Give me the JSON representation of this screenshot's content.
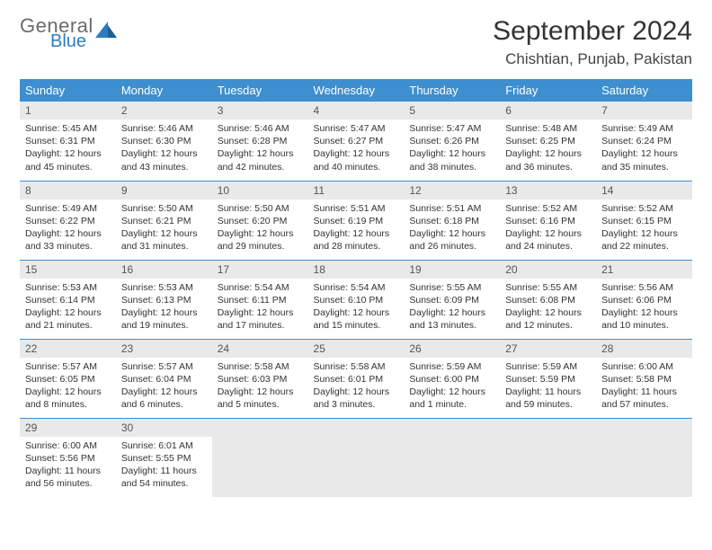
{
  "logo": {
    "general": "General",
    "blue": "Blue"
  },
  "title": "September 2024",
  "location": "Chishtian, Punjab, Pakistan",
  "colors": {
    "header_bg": "#3d8fcf",
    "header_text": "#ffffff",
    "daynum_bg": "#e9e9e9",
    "border": "#3d8fcf",
    "logo_gray": "#6b6b6b",
    "logo_blue": "#2e7cc0"
  },
  "day_headers": [
    "Sunday",
    "Monday",
    "Tuesday",
    "Wednesday",
    "Thursday",
    "Friday",
    "Saturday"
  ],
  "weeks": [
    [
      {
        "n": "1",
        "sr": "5:45 AM",
        "ss": "6:31 PM",
        "dl": "12 hours and 45 minutes."
      },
      {
        "n": "2",
        "sr": "5:46 AM",
        "ss": "6:30 PM",
        "dl": "12 hours and 43 minutes."
      },
      {
        "n": "3",
        "sr": "5:46 AM",
        "ss": "6:28 PM",
        "dl": "12 hours and 42 minutes."
      },
      {
        "n": "4",
        "sr": "5:47 AM",
        "ss": "6:27 PM",
        "dl": "12 hours and 40 minutes."
      },
      {
        "n": "5",
        "sr": "5:47 AM",
        "ss": "6:26 PM",
        "dl": "12 hours and 38 minutes."
      },
      {
        "n": "6",
        "sr": "5:48 AM",
        "ss": "6:25 PM",
        "dl": "12 hours and 36 minutes."
      },
      {
        "n": "7",
        "sr": "5:49 AM",
        "ss": "6:24 PM",
        "dl": "12 hours and 35 minutes."
      }
    ],
    [
      {
        "n": "8",
        "sr": "5:49 AM",
        "ss": "6:22 PM",
        "dl": "12 hours and 33 minutes."
      },
      {
        "n": "9",
        "sr": "5:50 AM",
        "ss": "6:21 PM",
        "dl": "12 hours and 31 minutes."
      },
      {
        "n": "10",
        "sr": "5:50 AM",
        "ss": "6:20 PM",
        "dl": "12 hours and 29 minutes."
      },
      {
        "n": "11",
        "sr": "5:51 AM",
        "ss": "6:19 PM",
        "dl": "12 hours and 28 minutes."
      },
      {
        "n": "12",
        "sr": "5:51 AM",
        "ss": "6:18 PM",
        "dl": "12 hours and 26 minutes."
      },
      {
        "n": "13",
        "sr": "5:52 AM",
        "ss": "6:16 PM",
        "dl": "12 hours and 24 minutes."
      },
      {
        "n": "14",
        "sr": "5:52 AM",
        "ss": "6:15 PM",
        "dl": "12 hours and 22 minutes."
      }
    ],
    [
      {
        "n": "15",
        "sr": "5:53 AM",
        "ss": "6:14 PM",
        "dl": "12 hours and 21 minutes."
      },
      {
        "n": "16",
        "sr": "5:53 AM",
        "ss": "6:13 PM",
        "dl": "12 hours and 19 minutes."
      },
      {
        "n": "17",
        "sr": "5:54 AM",
        "ss": "6:11 PM",
        "dl": "12 hours and 17 minutes."
      },
      {
        "n": "18",
        "sr": "5:54 AM",
        "ss": "6:10 PM",
        "dl": "12 hours and 15 minutes."
      },
      {
        "n": "19",
        "sr": "5:55 AM",
        "ss": "6:09 PM",
        "dl": "12 hours and 13 minutes."
      },
      {
        "n": "20",
        "sr": "5:55 AM",
        "ss": "6:08 PM",
        "dl": "12 hours and 12 minutes."
      },
      {
        "n": "21",
        "sr": "5:56 AM",
        "ss": "6:06 PM",
        "dl": "12 hours and 10 minutes."
      }
    ],
    [
      {
        "n": "22",
        "sr": "5:57 AM",
        "ss": "6:05 PM",
        "dl": "12 hours and 8 minutes."
      },
      {
        "n": "23",
        "sr": "5:57 AM",
        "ss": "6:04 PM",
        "dl": "12 hours and 6 minutes."
      },
      {
        "n": "24",
        "sr": "5:58 AM",
        "ss": "6:03 PM",
        "dl": "12 hours and 5 minutes."
      },
      {
        "n": "25",
        "sr": "5:58 AM",
        "ss": "6:01 PM",
        "dl": "12 hours and 3 minutes."
      },
      {
        "n": "26",
        "sr": "5:59 AM",
        "ss": "6:00 PM",
        "dl": "12 hours and 1 minute."
      },
      {
        "n": "27",
        "sr": "5:59 AM",
        "ss": "5:59 PM",
        "dl": "11 hours and 59 minutes."
      },
      {
        "n": "28",
        "sr": "6:00 AM",
        "ss": "5:58 PM",
        "dl": "11 hours and 57 minutes."
      }
    ],
    [
      {
        "n": "29",
        "sr": "6:00 AM",
        "ss": "5:56 PM",
        "dl": "11 hours and 56 minutes."
      },
      {
        "n": "30",
        "sr": "6:01 AM",
        "ss": "5:55 PM",
        "dl": "11 hours and 54 minutes."
      },
      null,
      null,
      null,
      null,
      null
    ]
  ],
  "labels": {
    "sunrise": "Sunrise: ",
    "sunset": "Sunset: ",
    "daylight": "Daylight: "
  }
}
